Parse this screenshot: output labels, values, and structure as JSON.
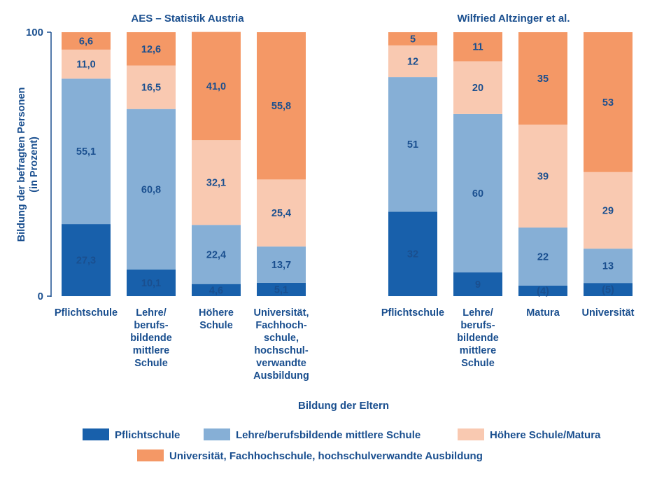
{
  "colors": {
    "text": "#1a4f8f",
    "pflicht": "#1860ab",
    "lehre": "#86afd6",
    "hoehere": "#f9c9b1",
    "uni": "#f49866",
    "axis": "#1a4f8f"
  },
  "ylabel": "Bildung der befragten Personen\n(in Prozent)",
  "xlabel": "Bildung der Eltern",
  "legend": [
    {
      "label": "Pflichtschule",
      "color": "#1860ab"
    },
    {
      "label": "Lehre/berufsbildende mittlere Schule",
      "color": "#86afd6"
    },
    {
      "label": "Höhere Schule/Matura",
      "color": "#f9c9b1"
    },
    {
      "label": "Universität, Fachhochschule, hochschulverwandte Ausbildung",
      "color": "#f49866"
    }
  ],
  "chart_data": [
    {
      "type": "bar",
      "stacked": true,
      "title": "AES – Statistik Austria",
      "ylim": [
        0,
        100
      ],
      "yticks": [
        "0",
        "100"
      ],
      "categories": [
        "Pflichtschule",
        "Lehre/\nberufs-\nbildende\nmittlere\nSchule",
        "Höhere\nSchule",
        "Universität,\nFachhoch-\nschule,\nhochschul-\nverwandte\nAusbildung"
      ],
      "series": [
        {
          "name": "Pflichtschule",
          "values": [
            27.3,
            10.1,
            4.6,
            5.1
          ],
          "labels": [
            "27,3",
            "10,1",
            "4,6",
            "5,1"
          ]
        },
        {
          "name": "Lehre/berufsbildende mittlere Schule",
          "values": [
            55.1,
            60.8,
            22.4,
            13.7
          ],
          "labels": [
            "55,1",
            "60,8",
            "22,4",
            "13,7"
          ]
        },
        {
          "name": "Höhere Schule/Matura",
          "values": [
            11.0,
            16.5,
            32.1,
            25.4
          ],
          "labels": [
            "11,0",
            "16,5",
            "32,1",
            "25,4"
          ]
        },
        {
          "name": "Universität, Fachhochschule, hochschulverwandte Ausbildung",
          "values": [
            6.6,
            12.6,
            41.0,
            55.8
          ],
          "labels": [
            "6,6",
            "12,6",
            "41,0",
            "55,8"
          ]
        }
      ]
    },
    {
      "type": "bar",
      "stacked": true,
      "title": "Wilfried Altzinger et al.",
      "ylim": [
        0,
        100
      ],
      "categories": [
        "Pflichtschule",
        "Lehre/\nberufs-\nbildende\nmittlere\nSchule",
        "Matura",
        "Universität"
      ],
      "series": [
        {
          "name": "Pflichtschule",
          "values": [
            32,
            9,
            4,
            5
          ],
          "labels": [
            "32",
            "9",
            "(4)",
            "(5)"
          ]
        },
        {
          "name": "Lehre/berufsbildende mittlere Schule",
          "values": [
            51,
            60,
            22,
            13
          ],
          "labels": [
            "51",
            "60",
            "22",
            "13"
          ]
        },
        {
          "name": "Höhere Schule/Matura",
          "values": [
            12,
            20,
            39,
            29
          ],
          "labels": [
            "12",
            "20",
            "39",
            "29"
          ]
        },
        {
          "name": "Universität, Fachhochschule, hochschulverwandte Ausbildung",
          "values": [
            5,
            11,
            35,
            53
          ],
          "labels": [
            "5",
            "11",
            "35",
            "53"
          ]
        }
      ]
    }
  ]
}
